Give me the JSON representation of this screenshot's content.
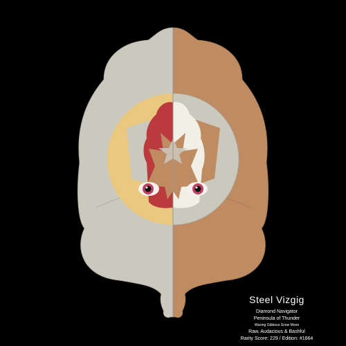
{
  "card": {
    "name": "Steel Vizgig",
    "class": "Diamond Navigator",
    "origin": "Peninsula of Thunder",
    "moon_phase": "Waxing Gibbous Snow Moon",
    "traits": "Raw, Audacious & Bashful",
    "rarity": "Rarity Score: 229 / Edition: #1664"
  },
  "colors": {
    "background": "#000000",
    "body_left": "#cbc8bd",
    "body_right": "#bf8b63",
    "ring_left": "#ebc880",
    "ring_right": "#cbc8bd",
    "hair": "#bb3a3d",
    "hair_light": "#f2efe7",
    "mask": "#bf8b63",
    "eye_iris": "#c04060",
    "eye_pupil": "#101010",
    "text": "#ffffff"
  }
}
